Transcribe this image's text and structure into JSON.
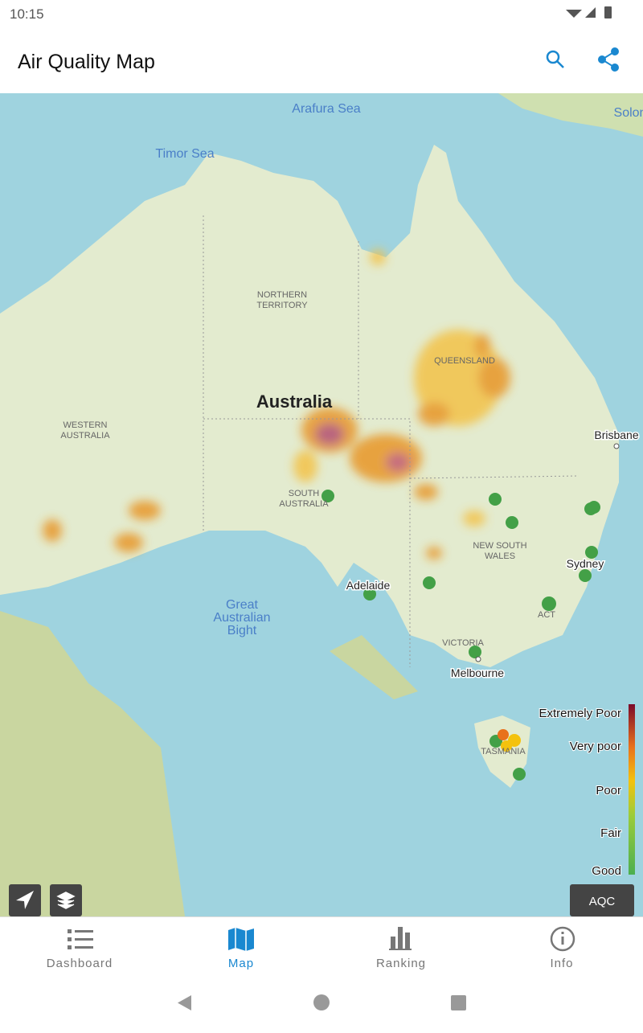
{
  "status_bar": {
    "time": "10:15"
  },
  "app_bar": {
    "title": "Air Quality Map"
  },
  "map": {
    "labels": {
      "arafura_sea": "Arafura Sea",
      "timor_sea": "Timor Sea",
      "solomon": "Solon",
      "northern_territory": [
        "NORTHERN",
        "TERRITORY"
      ],
      "queensland": "QUEENSLAND",
      "australia": "Australia",
      "western_australia": [
        "WESTERN",
        "AUSTRALIA"
      ],
      "south_australia": [
        "SOUTH",
        "AUSTRALIA"
      ],
      "brisbane": "Brisbane",
      "new_south_wales": [
        "NEW SOUTH",
        "WALES"
      ],
      "sydney": "Sydney",
      "adelaide": "Adelaide",
      "great_australian_bight": [
        "Great",
        "Australian",
        "Bight"
      ],
      "act": "ACT",
      "victoria": "VICTORIA",
      "melbourne": "Melbourne",
      "tasmania": "TASMANIA"
    },
    "legend": [
      "Extremely Poor",
      "Very poor",
      "Poor",
      "Fair",
      "Good"
    ],
    "source_button": "AQC"
  },
  "bottom_nav": [
    "Dashboard",
    "Map",
    "Ranking",
    "Info"
  ]
}
